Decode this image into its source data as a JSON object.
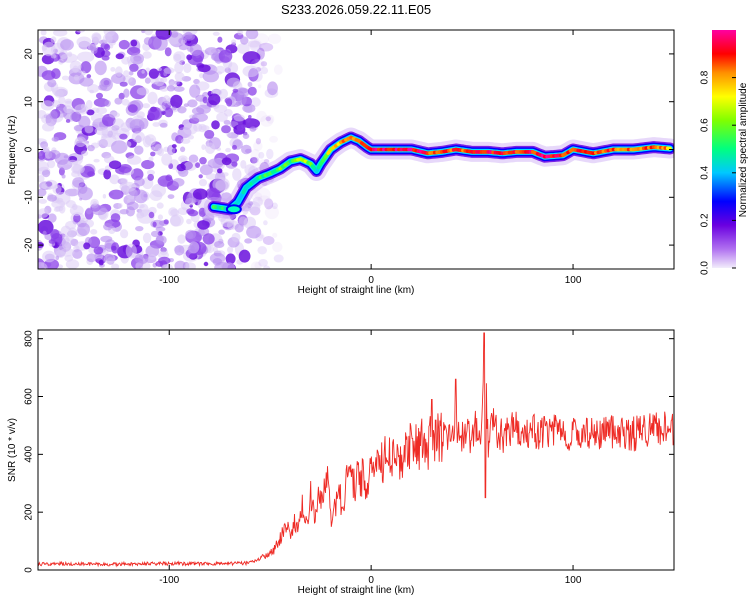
{
  "figure_title": "S233.2026.059.22.11.E05",
  "chart_data": [
    {
      "type": "heatmap",
      "title": "S233.2026.059.22.11.E05",
      "xlabel": "Height of straight line (km)",
      "ylabel": "Frequency (Hz)",
      "xlim": [
        -165,
        150
      ],
      "ylim": [
        -25,
        25
      ],
      "xticks": [
        -100,
        0,
        100
      ],
      "yticks": [
        -20,
        -10,
        0,
        10,
        20
      ],
      "xtick_labels": [
        "-100",
        "0",
        "100"
      ],
      "ytick_labels": [
        "-20",
        "-10",
        "0",
        "10",
        "20"
      ],
      "colorbar": {
        "label": "Normalized spectral amplitude",
        "range": [
          0,
          1
        ],
        "ticks": [
          0.0,
          0.2,
          0.4,
          0.6,
          0.8
        ],
        "tick_labels": [
          "0.0",
          "0.2",
          "0.4",
          "0.6",
          "0.8"
        ],
        "colormap": [
          "#e8e0f8",
          "#8a2be2",
          "#0000ff",
          "#00ffff",
          "#00ff00",
          "#ffff00",
          "#ff8000",
          "#ff0000",
          "#ff00ff"
        ]
      },
      "noise_region_x": [
        -165,
        -58
      ],
      "ridge": {
        "x": [
          -78,
          -70,
          -66,
          -62,
          -56,
          -50,
          -45,
          -40,
          -35,
          -30,
          -27,
          -25,
          -20,
          -15,
          -10,
          -6,
          -2,
          0,
          10,
          20,
          28,
          35,
          42,
          50,
          58,
          65,
          72,
          80,
          86,
          95,
          100,
          110,
          120,
          130,
          140,
          148
        ],
        "y": [
          -12,
          -12.5,
          -11,
          -8,
          -6,
          -5,
          -4,
          -2.5,
          -2,
          -3,
          -4.5,
          -3,
          0,
          1.5,
          2.5,
          1.8,
          0.5,
          0,
          0,
          0,
          -0.8,
          -0.5,
          0,
          -0.5,
          -0.5,
          -0.8,
          -0.5,
          -0.5,
          -1.5,
          -1.2,
          0,
          -0.8,
          0,
          0,
          0.5,
          0.2
        ],
        "amplitude": [
          0.55,
          0.5,
          0.45,
          0.4,
          0.5,
          0.55,
          0.6,
          0.55,
          0.7,
          0.6,
          0.5,
          0.55,
          0.75,
          0.8,
          0.85,
          0.8,
          0.9,
          0.95,
          0.97,
          0.95,
          0.9,
          0.92,
          0.88,
          0.9,
          0.92,
          0.95,
          0.9,
          0.92,
          0.95,
          0.9,
          0.92,
          0.9,
          0.88,
          0.85,
          0.85,
          0.8
        ]
      }
    },
    {
      "type": "line",
      "xlabel": "Height of straight line (km)",
      "ylabel": "SNR (10 * v/v)",
      "xlim": [
        -165,
        150
      ],
      "ylim": [
        0,
        830
      ],
      "xticks": [
        -100,
        0,
        100
      ],
      "yticks": [
        0,
        200,
        400,
        600,
        800
      ],
      "xtick_labels": [
        "-100",
        "0",
        "100"
      ],
      "ytick_labels": [
        "0",
        "200",
        "400",
        "600",
        "800"
      ],
      "color": "#ee2a24",
      "series": [
        {
          "name": "SNR",
          "x": [
            -165,
            -150,
            -130,
            -110,
            -90,
            -70,
            -60,
            -52,
            -48,
            -45,
            -42,
            -40,
            -38,
            -36,
            -34,
            -32,
            -30,
            -28,
            -26,
            -24,
            -22,
            -20,
            -18,
            -16,
            -14,
            -12,
            -10,
            -8,
            -6,
            -4,
            -2,
            0,
            5,
            10,
            15,
            20,
            25,
            30,
            35,
            40,
            45,
            50,
            52,
            54,
            56,
            58,
            60,
            65,
            70,
            75,
            80,
            85,
            90,
            95,
            100,
            105,
            110,
            115,
            120,
            125,
            130,
            135,
            140,
            145,
            150
          ],
          "y": [
            20,
            22,
            20,
            22,
            22,
            22,
            24,
            50,
            70,
            110,
            160,
            120,
            170,
            150,
            220,
            160,
            260,
            200,
            280,
            220,
            340,
            180,
            220,
            260,
            230,
            300,
            330,
            290,
            330,
            320,
            300,
            360,
            380,
            380,
            400,
            420,
            430,
            450,
            460,
            480,
            470,
            460,
            500,
            430,
            820,
            420,
            510,
            460,
            500,
            460,
            480,
            470,
            490,
            460,
            480,
            470,
            490,
            470,
            480,
            480,
            470,
            490,
            480,
            490,
            480
          ]
        }
      ]
    }
  ]
}
